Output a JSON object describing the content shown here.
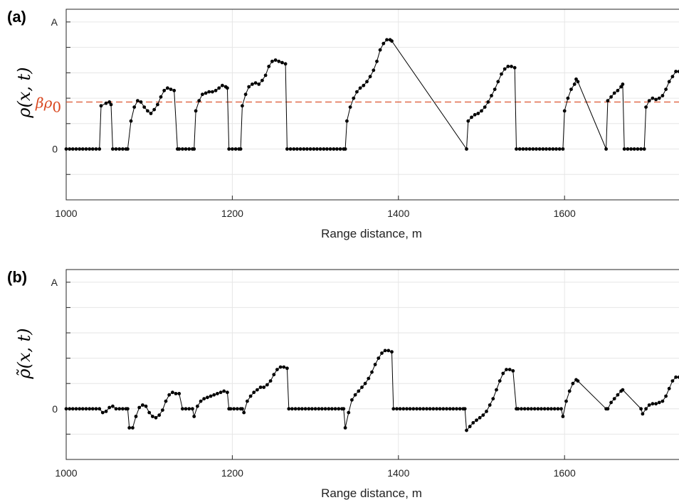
{
  "chart_data": [
    {
      "type": "line",
      "panel_label": "(a)",
      "xlabel": "Range distance, m",
      "ylabel": "ρ(x, t)",
      "xlim": [
        1000,
        1740
      ],
      "ylim": [
        -0.4,
        1.0
      ],
      "xticks": [
        1000,
        1200,
        1400,
        1600
      ],
      "yticks": [
        {
          "value": 1.0,
          "label": "A"
        },
        {
          "value": 0,
          "label": "0"
        }
      ],
      "grid": true,
      "reference_line": {
        "label": "βρ0",
        "value": 0.37,
        "color": "#d9471f",
        "style": "dashed"
      },
      "series": [
        {
          "markers": "dot",
          "x": [
            1000,
            1040,
            1042,
            1048,
            1052,
            1054,
            1056,
            1074,
            1078,
            1082,
            1086,
            1090,
            1094,
            1098,
            1102,
            1106,
            1110,
            1114,
            1118,
            1122,
            1126,
            1130,
            1134,
            1136,
            1154,
            1156,
            1160,
            1164,
            1168,
            1172,
            1176,
            1180,
            1184,
            1188,
            1192,
            1194,
            1196,
            1210,
            1212,
            1216,
            1220,
            1224,
            1228,
            1232,
            1236,
            1240,
            1244,
            1248,
            1252,
            1256,
            1260,
            1264,
            1266,
            1336,
            1338,
            1342,
            1346,
            1350,
            1354,
            1358,
            1362,
            1366,
            1370,
            1374,
            1378,
            1382,
            1386,
            1390,
            1392,
            1482,
            1484,
            1488,
            1492,
            1496,
            1500,
            1504,
            1508,
            1512,
            1516,
            1520,
            1524,
            1528,
            1532,
            1536,
            1540,
            1542,
            1598,
            1600,
            1604,
            1608,
            1612,
            1614,
            1616,
            1650,
            1652,
            1656,
            1660,
            1664,
            1668,
            1670,
            1672,
            1696,
            1698,
            1702,
            1706,
            1710,
            1714,
            1718,
            1722,
            1726,
            1730,
            1734,
            1738,
            1740
          ],
          "y": [
            0,
            0,
            0.34,
            0.36,
            0.37,
            0.35,
            0,
            0,
            0.22,
            0.33,
            0.38,
            0.37,
            0.33,
            0.3,
            0.28,
            0.31,
            0.35,
            0.41,
            0.46,
            0.48,
            0.47,
            0.46,
            0,
            0,
            0,
            0.3,
            0.38,
            0.43,
            0.44,
            0.45,
            0.45,
            0.46,
            0.48,
            0.5,
            0.49,
            0.48,
            0,
            0,
            0.34,
            0.43,
            0.49,
            0.51,
            0.52,
            0.51,
            0.54,
            0.58,
            0.65,
            0.69,
            0.7,
            0.69,
            0.68,
            0.67,
            0,
            0,
            0.22,
            0.33,
            0.4,
            0.45,
            0.48,
            0.5,
            0.53,
            0.57,
            0.62,
            0.69,
            0.78,
            0.83,
            0.86,
            0.86,
            0.85,
            0,
            0.22,
            0.25,
            0.27,
            0.28,
            0.3,
            0.33,
            0.37,
            0.42,
            0.47,
            0.53,
            0.59,
            0.63,
            0.65,
            0.65,
            0.64,
            0,
            0,
            0.3,
            0.4,
            0.47,
            0.51,
            0.55,
            0.53,
            0,
            0.38,
            0.41,
            0.44,
            0.46,
            0.49,
            0.51,
            0,
            0,
            0.33,
            0.38,
            0.4,
            0.39,
            0.4,
            0.42,
            0.47,
            0.53,
            0.57,
            0.61,
            0.61,
            0.61
          ]
        }
      ]
    },
    {
      "type": "line",
      "panel_label": "(b)",
      "xlabel": "Range distance, m",
      "ylabel": "ρ̃(x, t)",
      "xlim": [
        1000,
        1740
      ],
      "ylim": [
        -0.4,
        1.0
      ],
      "xticks": [
        1000,
        1200,
        1400,
        1600
      ],
      "yticks": [
        {
          "value": 1.0,
          "label": "A"
        },
        {
          "value": 0,
          "label": "0"
        }
      ],
      "grid": true,
      "series": [
        {
          "markers": "dot",
          "x": [
            1000,
            1040,
            1044,
            1048,
            1052,
            1056,
            1060,
            1074,
            1076,
            1080,
            1084,
            1088,
            1092,
            1096,
            1100,
            1104,
            1108,
            1112,
            1116,
            1120,
            1124,
            1128,
            1132,
            1136,
            1140,
            1152,
            1154,
            1158,
            1162,
            1166,
            1170,
            1174,
            1178,
            1182,
            1186,
            1190,
            1194,
            1196,
            1198,
            1212,
            1214,
            1218,
            1222,
            1226,
            1230,
            1234,
            1238,
            1242,
            1246,
            1250,
            1254,
            1258,
            1262,
            1266,
            1268,
            1334,
            1336,
            1340,
            1344,
            1348,
            1352,
            1356,
            1360,
            1364,
            1368,
            1372,
            1376,
            1380,
            1384,
            1388,
            1392,
            1394,
            1480,
            1482,
            1486,
            1490,
            1494,
            1498,
            1502,
            1506,
            1510,
            1514,
            1518,
            1522,
            1526,
            1530,
            1534,
            1538,
            1542,
            1544,
            1596,
            1598,
            1602,
            1606,
            1610,
            1614,
            1616,
            1650,
            1652,
            1656,
            1660,
            1664,
            1668,
            1670,
            1692,
            1694,
            1698,
            1702,
            1706,
            1710,
            1714,
            1718,
            1722,
            1726,
            1730,
            1734,
            1738,
            1740
          ],
          "y": [
            0,
            0,
            -0.03,
            -0.02,
            0.01,
            0.02,
            0,
            0,
            -0.15,
            -0.15,
            -0.06,
            0.01,
            0.03,
            0.02,
            -0.03,
            -0.06,
            -0.07,
            -0.05,
            -0.01,
            0.06,
            0.11,
            0.13,
            0.12,
            0.12,
            0,
            0,
            -0.06,
            0.02,
            0.06,
            0.08,
            0.09,
            0.1,
            0.11,
            0.12,
            0.13,
            0.14,
            0.13,
            0,
            0,
            0,
            -0.03,
            0.06,
            0.1,
            0.13,
            0.15,
            0.17,
            0.17,
            0.19,
            0.22,
            0.27,
            0.31,
            0.33,
            0.33,
            0.32,
            0,
            0,
            -0.15,
            -0.03,
            0.07,
            0.11,
            0.14,
            0.17,
            0.2,
            0.24,
            0.29,
            0.35,
            0.4,
            0.44,
            0.46,
            0.46,
            0.45,
            0,
            0,
            -0.17,
            -0.14,
            -0.11,
            -0.09,
            -0.07,
            -0.05,
            -0.02,
            0.03,
            0.08,
            0.15,
            0.22,
            0.28,
            0.31,
            0.31,
            0.3,
            0,
            0,
            0,
            -0.06,
            0.06,
            0.14,
            0.2,
            0.23,
            0.22,
            0,
            0,
            0.05,
            0.08,
            0.11,
            0.14,
            0.15,
            0,
            -0.04,
            0.0,
            0.03,
            0.04,
            0.04,
            0.05,
            0.06,
            0.1,
            0.16,
            0.22,
            0.25,
            0.25,
            0.25
          ]
        }
      ]
    }
  ]
}
